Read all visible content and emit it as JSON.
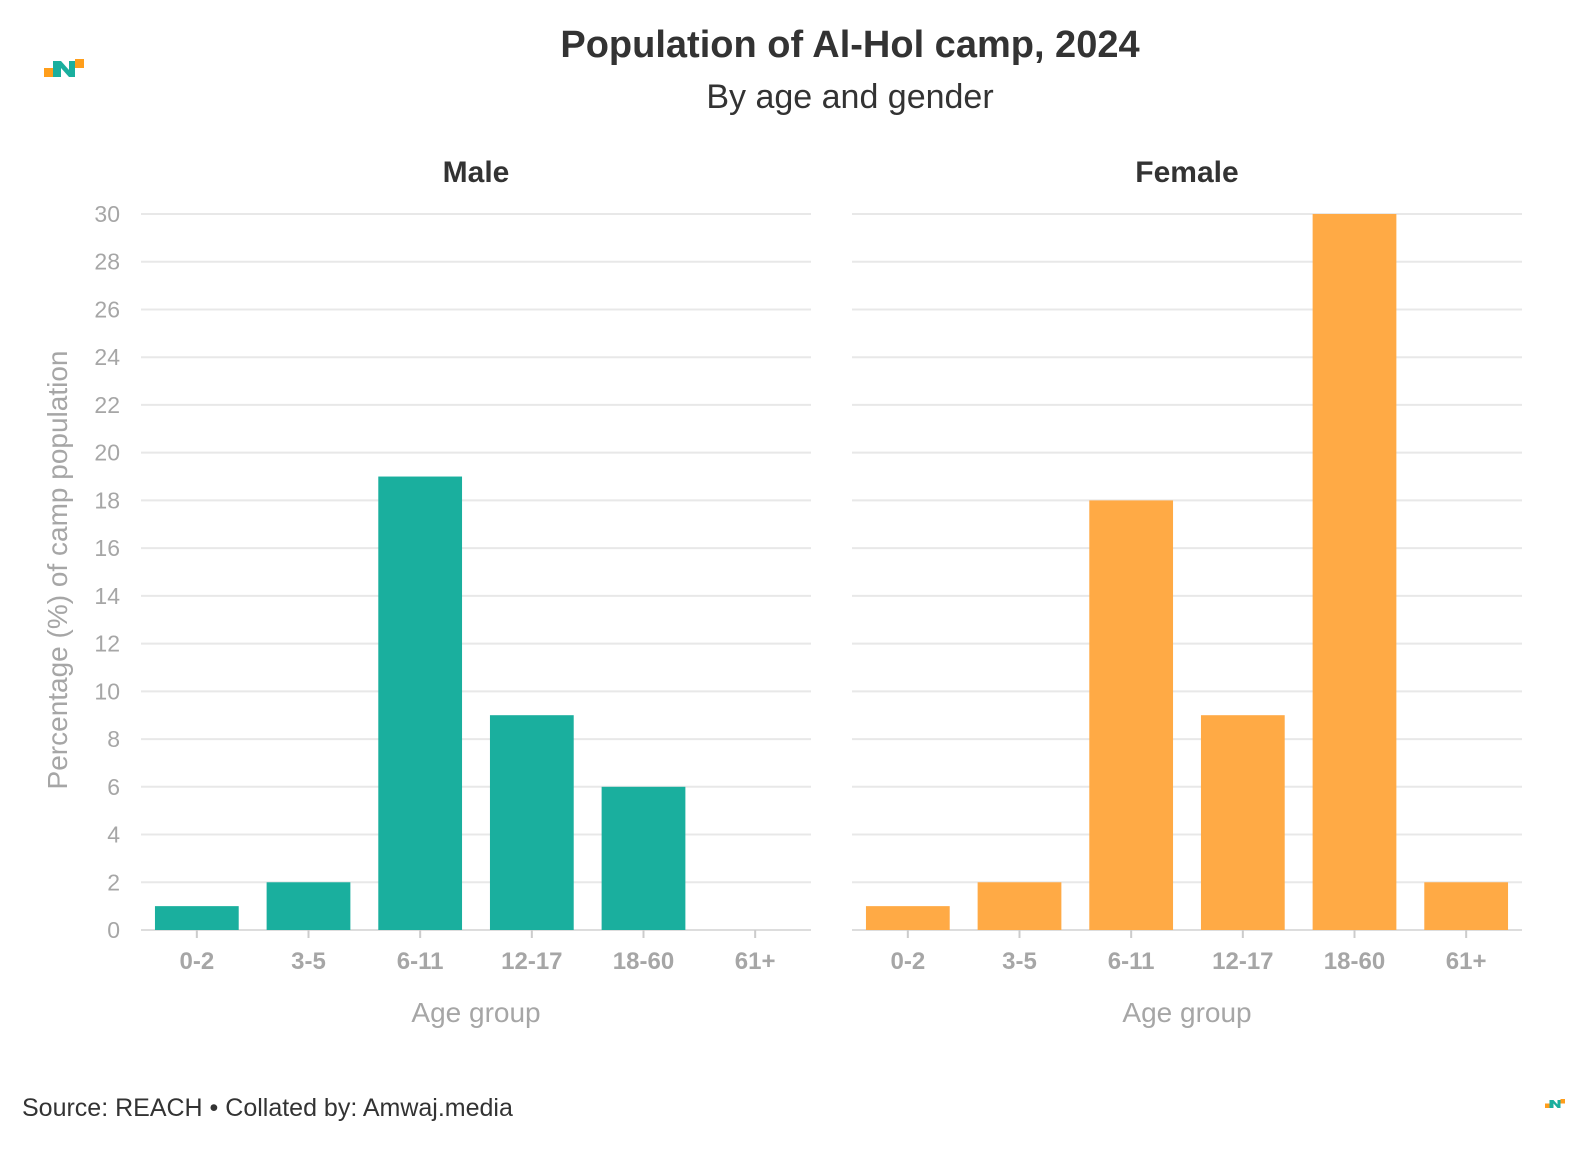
{
  "header": {
    "title": "Population of Al-Hol camp, 2024",
    "subtitle": "By age and gender"
  },
  "footer": {
    "source": "Source: REACH • Collated by: Amwaj.media"
  },
  "brand_colors": {
    "teal": "#1AAF9E",
    "orange": "#FFAA45"
  },
  "chart_data": {
    "type": "bar",
    "title": "Population of Al-Hol camp, 2024",
    "subtitle": "By age and gender",
    "xlabel": "Age group",
    "ylabel": "Percentage (%) of camp population",
    "categories": [
      "0-2",
      "3-5",
      "6-11",
      "12-17",
      "18-60",
      "61+"
    ],
    "ylim": [
      0,
      30
    ],
    "yticks": [
      0,
      2,
      4,
      6,
      8,
      10,
      12,
      14,
      16,
      18,
      20,
      22,
      24,
      26,
      28,
      30
    ],
    "grid": true,
    "facets": [
      {
        "name": "Male",
        "color": "#1AAF9E",
        "values": [
          1,
          2,
          19,
          9,
          6,
          0
        ]
      },
      {
        "name": "Female",
        "color": "#FFAA45",
        "values": [
          1,
          2,
          18,
          9,
          30,
          2
        ]
      }
    ]
  }
}
